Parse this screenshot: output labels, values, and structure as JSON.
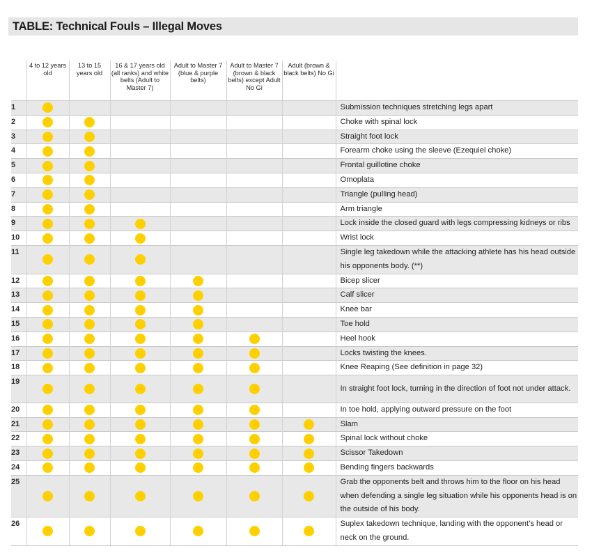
{
  "title": "TABLE: Technical Fouls – Illegal Moves",
  "colors": {
    "dot": "#ffd000",
    "band": "#e8e8e8"
  },
  "headers": [
    "",
    "4 to 12 years old",
    "13 to 15 years old",
    "16 & 17 years old (all ranks) and white belts (Adult to Master 7)",
    "Adult to Master 7 (blue & purple belts)",
    "Adult to Master 7 (brown & black belts) except Adult No Gi",
    "Adult (brown & black belts) No Gi",
    ""
  ],
  "rows": [
    {
      "num": "1",
      "dots": [
        1,
        0,
        0,
        0,
        0,
        0
      ],
      "lines": 1,
      "desc": "Submission techniques stretching legs apart"
    },
    {
      "num": "2",
      "dots": [
        1,
        1,
        0,
        0,
        0,
        0
      ],
      "lines": 1,
      "desc": "Choke with spinal lock"
    },
    {
      "num": "3",
      "dots": [
        1,
        1,
        0,
        0,
        0,
        0
      ],
      "lines": 1,
      "desc": "Straight foot lock"
    },
    {
      "num": "4",
      "dots": [
        1,
        1,
        0,
        0,
        0,
        0
      ],
      "lines": 1,
      "desc": "Forearm choke using the sleeve (Ezequiel choke)"
    },
    {
      "num": "5",
      "dots": [
        1,
        1,
        0,
        0,
        0,
        0
      ],
      "lines": 1,
      "desc": "Frontal guillotine choke"
    },
    {
      "num": "6",
      "dots": [
        1,
        1,
        0,
        0,
        0,
        0
      ],
      "lines": 1,
      "desc": "Omoplata"
    },
    {
      "num": "7",
      "dots": [
        1,
        1,
        0,
        0,
        0,
        0
      ],
      "lines": 1,
      "desc": "Triangle (pulling head)"
    },
    {
      "num": "8",
      "dots": [
        1,
        1,
        0,
        0,
        0,
        0
      ],
      "lines": 1,
      "desc": "Arm triangle"
    },
    {
      "num": "9",
      "dots": [
        1,
        1,
        1,
        0,
        0,
        0
      ],
      "lines": 1,
      "desc": "Lock inside the closed guard with legs compressing kidneys or ribs"
    },
    {
      "num": "10",
      "dots": [
        1,
        1,
        1,
        0,
        0,
        0
      ],
      "lines": 1,
      "desc": "Wrist lock"
    },
    {
      "num": "11",
      "dots": [
        1,
        1,
        1,
        0,
        0,
        0
      ],
      "lines": 2,
      "desc": "Single leg takedown while the attacking athlete has his head outside his opponents body. (**)"
    },
    {
      "num": "12",
      "dots": [
        1,
        1,
        1,
        1,
        0,
        0
      ],
      "lines": 1,
      "desc": "Bicep slicer"
    },
    {
      "num": "13",
      "dots": [
        1,
        1,
        1,
        1,
        0,
        0
      ],
      "lines": 1,
      "desc": "Calf slicer"
    },
    {
      "num": "14",
      "dots": [
        1,
        1,
        1,
        1,
        0,
        0
      ],
      "lines": 1,
      "desc": "Knee bar"
    },
    {
      "num": "15",
      "dots": [
        1,
        1,
        1,
        1,
        0,
        0
      ],
      "lines": 1,
      "desc": "Toe hold"
    },
    {
      "num": "16",
      "dots": [
        1,
        1,
        1,
        1,
        1,
        0
      ],
      "lines": 1,
      "desc": "Heel hook"
    },
    {
      "num": "17",
      "dots": [
        1,
        1,
        1,
        1,
        1,
        0
      ],
      "lines": 1,
      "desc": "Locks twisting the knees."
    },
    {
      "num": "18",
      "dots": [
        1,
        1,
        1,
        1,
        1,
        0
      ],
      "lines": 1,
      "desc": "Knee Reaping (See definition in page 32)"
    },
    {
      "num": "19",
      "dots": [
        1,
        1,
        1,
        1,
        1,
        0
      ],
      "lines": 2,
      "desc": "In straight foot lock, turning in the direction of foot not under attack."
    },
    {
      "num": "20",
      "dots": [
        1,
        1,
        1,
        1,
        1,
        0
      ],
      "lines": 1,
      "desc": "In toe hold, applying outward pressure on the foot"
    },
    {
      "num": "21",
      "dots": [
        1,
        1,
        1,
        1,
        1,
        1
      ],
      "lines": 1,
      "desc": "Slam"
    },
    {
      "num": "22",
      "dots": [
        1,
        1,
        1,
        1,
        1,
        1
      ],
      "lines": 1,
      "desc": "Spinal lock without choke"
    },
    {
      "num": "23",
      "dots": [
        1,
        1,
        1,
        1,
        1,
        1
      ],
      "lines": 1,
      "desc": "Scissor Takedown"
    },
    {
      "num": "24",
      "dots": [
        1,
        1,
        1,
        1,
        1,
        1
      ],
      "lines": 1,
      "desc": "Bending fingers backwards"
    },
    {
      "num": "25",
      "dots": [
        1,
        1,
        1,
        1,
        1,
        1
      ],
      "lines": 3,
      "desc": "Grab the opponents belt and throws him to the floor on his head when defending a single leg situation while his opponents head is on the outside of his body."
    },
    {
      "num": "26",
      "dots": [
        1,
        1,
        1,
        1,
        1,
        1
      ],
      "lines": 2,
      "desc": "Suplex takedown technique, landing with the opponent’s head or neck on the ground."
    }
  ]
}
